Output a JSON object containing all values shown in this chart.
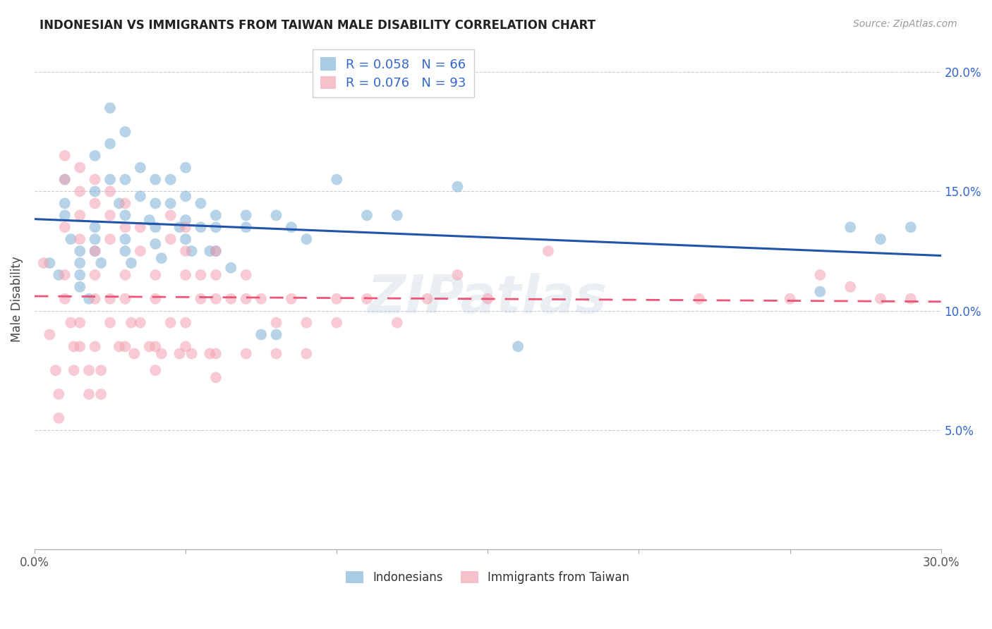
{
  "title": "INDONESIAN VS IMMIGRANTS FROM TAIWAN MALE DISABILITY CORRELATION CHART",
  "source": "Source: ZipAtlas.com",
  "ylabel": "Male Disability",
  "x_min": 0.0,
  "x_max": 0.3,
  "y_min": 0.0,
  "y_max": 0.21,
  "x_ticks": [
    0.0,
    0.05,
    0.1,
    0.15,
    0.2,
    0.25,
    0.3
  ],
  "y_ticks": [
    0.0,
    0.05,
    0.1,
    0.15,
    0.2
  ],
  "blue_R": "0.058",
  "blue_N": "66",
  "pink_R": "0.076",
  "pink_N": "93",
  "blue_color": "#7BAFD4",
  "pink_color": "#F4A0B0",
  "blue_line_color": "#2255AA",
  "pink_line_color": "#EE5577",
  "watermark": "ZIPatlas",
  "legend_label_blue": "Indonesians",
  "legend_label_pink": "Immigrants from Taiwan",
  "blue_scatter_x": [
    0.005,
    0.008,
    0.01,
    0.01,
    0.01,
    0.012,
    0.015,
    0.015,
    0.015,
    0.015,
    0.018,
    0.02,
    0.02,
    0.02,
    0.02,
    0.02,
    0.022,
    0.025,
    0.025,
    0.025,
    0.028,
    0.03,
    0.03,
    0.03,
    0.03,
    0.03,
    0.032,
    0.035,
    0.035,
    0.038,
    0.04,
    0.04,
    0.04,
    0.04,
    0.042,
    0.045,
    0.045,
    0.048,
    0.05,
    0.05,
    0.05,
    0.05,
    0.052,
    0.055,
    0.055,
    0.058,
    0.06,
    0.06,
    0.06,
    0.065,
    0.07,
    0.07,
    0.075,
    0.08,
    0.08,
    0.085,
    0.09,
    0.1,
    0.11,
    0.12,
    0.14,
    0.16,
    0.26,
    0.27,
    0.28,
    0.29
  ],
  "blue_scatter_y": [
    0.12,
    0.115,
    0.155,
    0.145,
    0.14,
    0.13,
    0.125,
    0.12,
    0.115,
    0.11,
    0.105,
    0.165,
    0.15,
    0.135,
    0.13,
    0.125,
    0.12,
    0.185,
    0.17,
    0.155,
    0.145,
    0.175,
    0.155,
    0.14,
    0.13,
    0.125,
    0.12,
    0.16,
    0.148,
    0.138,
    0.155,
    0.145,
    0.135,
    0.128,
    0.122,
    0.155,
    0.145,
    0.135,
    0.16,
    0.148,
    0.138,
    0.13,
    0.125,
    0.145,
    0.135,
    0.125,
    0.14,
    0.135,
    0.125,
    0.118,
    0.14,
    0.135,
    0.09,
    0.14,
    0.09,
    0.135,
    0.13,
    0.155,
    0.14,
    0.14,
    0.152,
    0.085,
    0.108,
    0.135,
    0.13,
    0.135
  ],
  "pink_scatter_x": [
    0.003,
    0.005,
    0.007,
    0.008,
    0.008,
    0.01,
    0.01,
    0.01,
    0.01,
    0.01,
    0.012,
    0.013,
    0.013,
    0.015,
    0.015,
    0.015,
    0.015,
    0.015,
    0.015,
    0.018,
    0.018,
    0.02,
    0.02,
    0.02,
    0.02,
    0.02,
    0.02,
    0.022,
    0.022,
    0.025,
    0.025,
    0.025,
    0.025,
    0.025,
    0.028,
    0.03,
    0.03,
    0.03,
    0.03,
    0.03,
    0.032,
    0.033,
    0.035,
    0.035,
    0.035,
    0.038,
    0.04,
    0.04,
    0.04,
    0.04,
    0.042,
    0.045,
    0.045,
    0.045,
    0.048,
    0.05,
    0.05,
    0.05,
    0.05,
    0.05,
    0.052,
    0.055,
    0.055,
    0.058,
    0.06,
    0.06,
    0.06,
    0.06,
    0.06,
    0.065,
    0.07,
    0.07,
    0.07,
    0.075,
    0.08,
    0.08,
    0.085,
    0.09,
    0.09,
    0.1,
    0.1,
    0.11,
    0.12,
    0.13,
    0.14,
    0.15,
    0.17,
    0.22,
    0.25,
    0.26,
    0.27,
    0.28,
    0.29
  ],
  "pink_scatter_y": [
    0.12,
    0.09,
    0.075,
    0.065,
    0.055,
    0.165,
    0.155,
    0.135,
    0.115,
    0.105,
    0.095,
    0.085,
    0.075,
    0.16,
    0.15,
    0.14,
    0.13,
    0.095,
    0.085,
    0.075,
    0.065,
    0.155,
    0.145,
    0.125,
    0.115,
    0.105,
    0.085,
    0.075,
    0.065,
    0.15,
    0.14,
    0.13,
    0.105,
    0.095,
    0.085,
    0.145,
    0.135,
    0.115,
    0.105,
    0.085,
    0.095,
    0.082,
    0.135,
    0.125,
    0.095,
    0.085,
    0.115,
    0.105,
    0.085,
    0.075,
    0.082,
    0.14,
    0.13,
    0.095,
    0.082,
    0.135,
    0.125,
    0.115,
    0.095,
    0.085,
    0.082,
    0.115,
    0.105,
    0.082,
    0.125,
    0.115,
    0.105,
    0.082,
    0.072,
    0.105,
    0.115,
    0.105,
    0.082,
    0.105,
    0.095,
    0.082,
    0.105,
    0.095,
    0.082,
    0.105,
    0.095,
    0.105,
    0.095,
    0.105,
    0.115,
    0.105,
    0.125,
    0.105,
    0.105,
    0.115,
    0.11,
    0.105,
    0.105
  ]
}
